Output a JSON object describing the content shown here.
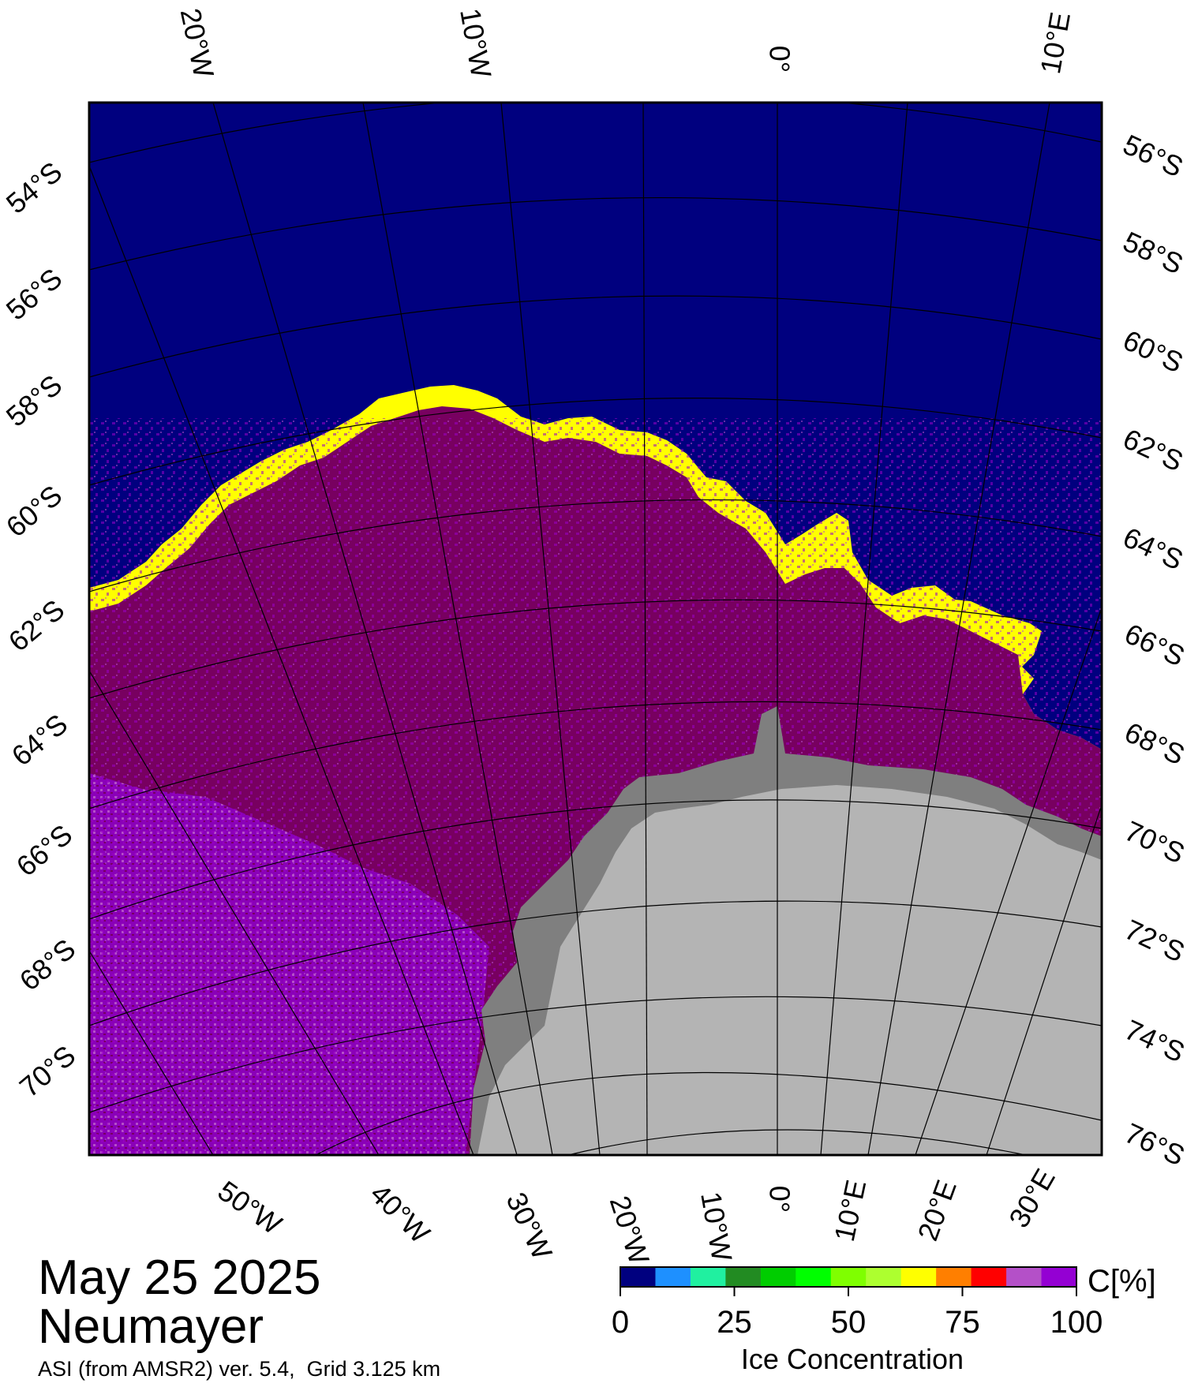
{
  "header": {
    "date": "May 25 2025",
    "station": "Neumayer",
    "product": "ASI (from AMSR2) ver. 5.4,  Grid 3.125 km"
  },
  "map": {
    "top_lon_labels": [
      "20°W",
      "10°W",
      "0°",
      "10°E"
    ],
    "bottom_lon_labels": [
      "50°W",
      "40°W",
      "30°W",
      "20°W",
      "10°W",
      "0°",
      "10°E",
      "20°E",
      "30°E"
    ],
    "left_lat_labels": [
      "54°S",
      "56°S",
      "58°S",
      "60°S",
      "62°S",
      "64°S",
      "66°S",
      "68°S",
      "70°S"
    ],
    "right_lat_labels": [
      "56°S",
      "58°S",
      "60°S",
      "62°S",
      "64°S",
      "66°S",
      "68°S",
      "70°S",
      "72°S",
      "74°S",
      "76°S"
    ],
    "colors": {
      "open_water": "#00007f",
      "land_ice": "#b4b4b4",
      "ice_shelf": "#7f7f7f",
      "ice_100": "#780060",
      "ice_95": "#9a00c8",
      "graticule": "#000000"
    }
  },
  "colorbar": {
    "title": "Ice Concentration",
    "unit_label": "C[%]",
    "ticks": [
      "0",
      "25",
      "50",
      "75",
      "100"
    ],
    "colors": [
      "#00007f",
      "#1e90ff",
      "#20f0a0",
      "#228b22",
      "#00cd00",
      "#00ff00",
      "#7fff00",
      "#adff2f",
      "#ffff00",
      "#ff7f00",
      "#ff0000",
      "#b450c8",
      "#9400d3"
    ]
  }
}
